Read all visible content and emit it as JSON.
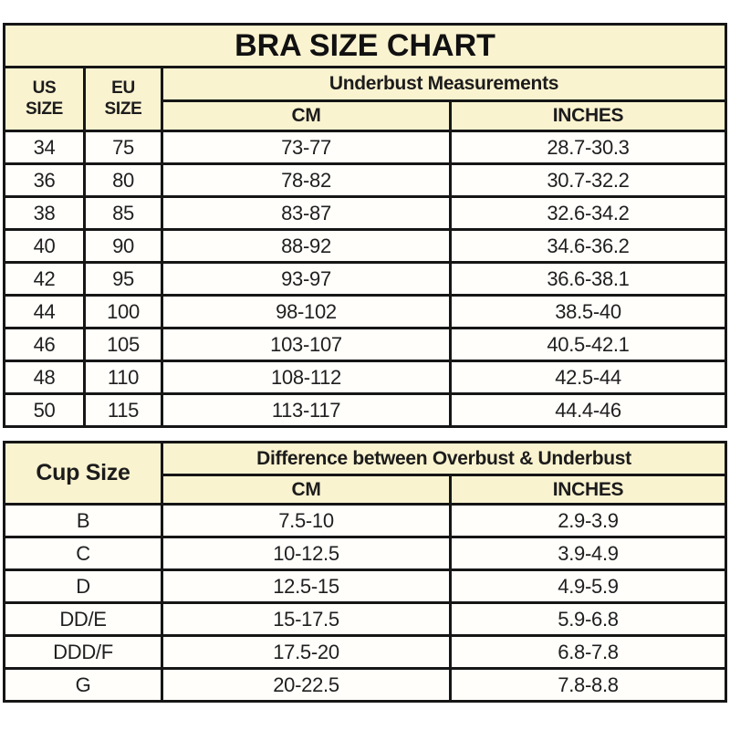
{
  "colors": {
    "header_background": "#faf3d0",
    "row_background": "#fffefb",
    "border": "#161616",
    "text": "#1c1c1c"
  },
  "bra_table": {
    "title": "BRA SIZE CHART",
    "us_header_line1": "US",
    "us_header_line2": "SIZE",
    "eu_header_line1": "EU",
    "eu_header_line2": "SIZE",
    "group_header": "Underbust Measurements",
    "cm_header": "CM",
    "inches_header": "INCHES",
    "rows": [
      {
        "us": "34",
        "eu": "75",
        "cm": "73-77",
        "inches": "28.7-30.3"
      },
      {
        "us": "36",
        "eu": "80",
        "cm": "78-82",
        "inches": "30.7-32.2"
      },
      {
        "us": "38",
        "eu": "85",
        "cm": "83-87",
        "inches": "32.6-34.2"
      },
      {
        "us": "40",
        "eu": "90",
        "cm": "88-92",
        "inches": "34.6-36.2"
      },
      {
        "us": "42",
        "eu": "95",
        "cm": "93-97",
        "inches": "36.6-38.1"
      },
      {
        "us": "44",
        "eu": "100",
        "cm": "98-102",
        "inches": "38.5-40"
      },
      {
        "us": "46",
        "eu": "105",
        "cm": "103-107",
        "inches": "40.5-42.1"
      },
      {
        "us": "48",
        "eu": "110",
        "cm": "108-112",
        "inches": "42.5-44"
      },
      {
        "us": "50",
        "eu": "115",
        "cm": "113-117",
        "inches": "44.4-46"
      }
    ]
  },
  "cup_table": {
    "cup_header": "Cup Size",
    "group_header": "Difference between Overbust & Underbust",
    "cm_header": "CM",
    "inches_header": "INCHES",
    "rows": [
      {
        "cup": "B",
        "cm": "7.5-10",
        "inches": "2.9-3.9"
      },
      {
        "cup": "C",
        "cm": "10-12.5",
        "inches": "3.9-4.9"
      },
      {
        "cup": "D",
        "cm": "12.5-15",
        "inches": "4.9-5.9"
      },
      {
        "cup": "DD/E",
        "cm": "15-17.5",
        "inches": "5.9-6.8"
      },
      {
        "cup": "DDD/F",
        "cm": "17.5-20",
        "inches": "6.8-7.8"
      },
      {
        "cup": "G",
        "cm": "20-22.5",
        "inches": "7.8-8.8"
      }
    ]
  }
}
